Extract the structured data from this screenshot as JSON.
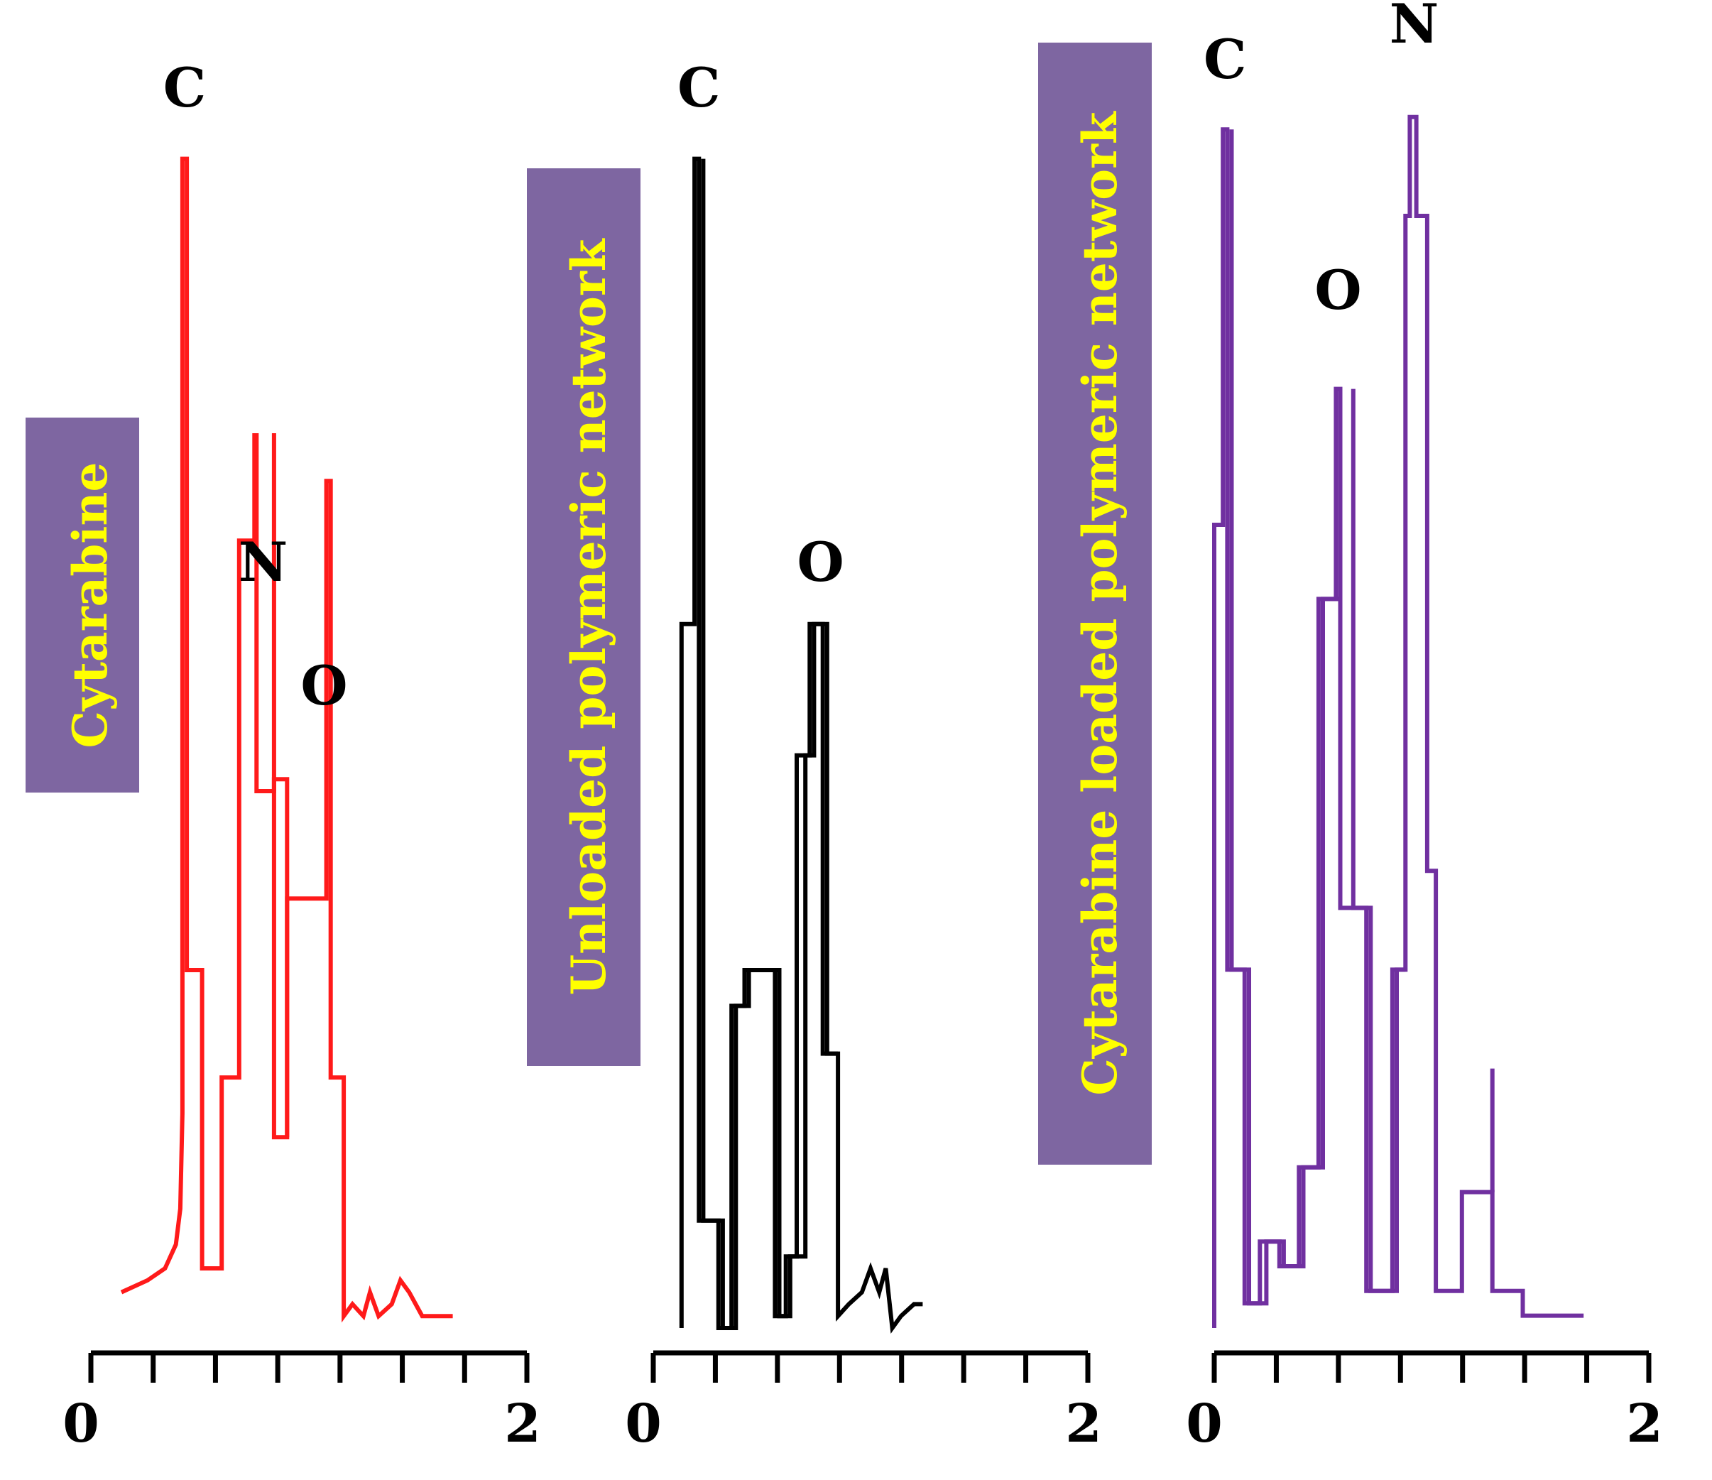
{
  "colors": {
    "label_box": "#7e66a1",
    "label_text": "#ffff00",
    "axis": "#000000"
  },
  "chart_data": [
    {
      "type": "line",
      "name": "Cytarabine",
      "sample_label": "Cytarabine",
      "color": "#ff1a1a",
      "xlim": [
        0,
        2
      ],
      "x_tick_labels": [
        "0",
        "2"
      ],
      "peak_labels": [
        {
          "text": "C",
          "x": 0.43
        },
        {
          "text": "N",
          "x": 0.79
        },
        {
          "text": "O",
          "x": 1.07
        }
      ],
      "series": [
        {
          "name": "trace-a",
          "points": [
            [
              0.14,
              0.03
            ],
            [
              0.26,
              0.04
            ],
            [
              0.34,
              0.05
            ],
            [
              0.39,
              0.07
            ],
            [
              0.41,
              0.1
            ],
            [
              0.42,
              0.18
            ],
            [
              0.42,
              0.98
            ],
            [
              0.44,
              0.98
            ],
            [
              0.44,
              0.3
            ],
            [
              0.51,
              0.3
            ],
            [
              0.51,
              0.05
            ],
            [
              0.6,
              0.05
            ],
            [
              0.6,
              0.21
            ],
            [
              0.68,
              0.21
            ],
            [
              0.68,
              0.66
            ],
            [
              0.75,
              0.66
            ],
            [
              0.75,
              0.75
            ]
          ]
        },
        {
          "name": "trace-b",
          "points": [
            [
              0.84,
              0.75
            ],
            [
              0.84,
              0.16
            ],
            [
              0.9,
              0.16
            ],
            [
              0.9,
              0.36
            ],
            [
              1.08,
              0.36
            ],
            [
              1.08,
              0.71
            ],
            [
              1.1,
              0.71
            ],
            [
              1.1,
              0.21
            ],
            [
              1.16,
              0.21
            ],
            [
              1.16,
              0.01
            ],
            [
              1.2,
              0.02
            ],
            [
              1.25,
              0.01
            ],
            [
              1.28,
              0.03
            ],
            [
              1.32,
              0.01
            ],
            [
              1.38,
              0.02
            ],
            [
              1.42,
              0.04
            ],
            [
              1.46,
              0.03
            ],
            [
              1.52,
              0.01
            ],
            [
              1.58,
              0.01
            ],
            [
              1.66,
              0.01
            ]
          ]
        },
        {
          "name": "trace-c",
          "points": [
            [
              0.76,
              0.75
            ],
            [
              0.76,
              0.45
            ],
            [
              0.84,
              0.45
            ],
            [
              0.84,
              0.46
            ],
            [
              0.9,
              0.46
            ],
            [
              0.9,
              0.16
            ]
          ]
        }
      ]
    },
    {
      "type": "line",
      "name": "Unloaded polymeric network",
      "sample_label": "Unloaded polymeric network",
      "color": "#000000",
      "xlim": [
        0,
        2
      ],
      "x_tick_labels": [
        "0",
        "2"
      ],
      "peak_labels": [
        {
          "text": "C",
          "x": 0.21
        },
        {
          "text": "O",
          "x": 0.77
        }
      ],
      "series": [
        {
          "name": "trace-a",
          "points": [
            [
              0.13,
              0.0
            ],
            [
              0.13,
              0.59
            ],
            [
              0.19,
              0.59
            ],
            [
              0.19,
              0.98
            ],
            [
              0.21,
              0.98
            ],
            [
              0.21,
              0.09
            ],
            [
              0.32,
              0.09
            ],
            [
              0.32,
              0.0
            ],
            [
              0.36,
              0.0
            ],
            [
              0.36,
              0.27
            ],
            [
              0.42,
              0.27
            ],
            [
              0.42,
              0.3
            ],
            [
              0.56,
              0.3
            ],
            [
              0.56,
              0.01
            ],
            [
              0.61,
              0.01
            ],
            [
              0.61,
              0.06
            ],
            [
              0.66,
              0.06
            ],
            [
              0.66,
              0.48
            ],
            [
              0.72,
              0.48
            ],
            [
              0.72,
              0.59
            ],
            [
              0.78,
              0.59
            ],
            [
              0.78,
              0.23
            ],
            [
              0.85,
              0.23
            ],
            [
              0.85,
              0.01
            ],
            [
              0.9,
              0.02
            ],
            [
              0.96,
              0.03
            ],
            [
              1.0,
              0.05
            ],
            [
              1.04,
              0.03
            ],
            [
              1.07,
              0.05
            ],
            [
              1.1,
              0.0
            ],
            [
              1.14,
              0.01
            ],
            [
              1.2,
              0.02
            ],
            [
              1.24,
              0.02
            ]
          ]
        },
        {
          "name": "trace-b",
          "points": [
            [
              0.23,
              0.98
            ],
            [
              0.23,
              0.09
            ],
            [
              0.3,
              0.09
            ],
            [
              0.3,
              0.0
            ],
            [
              0.38,
              0.0
            ],
            [
              0.38,
              0.27
            ],
            [
              0.44,
              0.27
            ],
            [
              0.44,
              0.3
            ],
            [
              0.58,
              0.3
            ],
            [
              0.58,
              0.01
            ],
            [
              0.63,
              0.01
            ],
            [
              0.63,
              0.06
            ],
            [
              0.7,
              0.06
            ],
            [
              0.7,
              0.48
            ],
            [
              0.74,
              0.48
            ],
            [
              0.74,
              0.59
            ],
            [
              0.8,
              0.59
            ],
            [
              0.8,
              0.23
            ],
            [
              0.85,
              0.23
            ]
          ]
        }
      ]
    },
    {
      "type": "line",
      "name": "Cytarabine loaded polymeric network",
      "sample_label": "Cytarabine loaded polymeric network",
      "color": "#7030a0",
      "xlim": [
        0,
        2
      ],
      "x_tick_labels": [
        "0",
        "2"
      ],
      "peak_labels": [
        {
          "text": "C",
          "x": 0.05
        },
        {
          "text": "O",
          "x": 0.57
        },
        {
          "text": "N",
          "x": 0.92
        }
      ],
      "series": [
        {
          "name": "trace-a",
          "points": [
            [
              0.0,
              0.0
            ],
            [
              0.0,
              0.65
            ],
            [
              0.04,
              0.65
            ],
            [
              0.04,
              0.97
            ],
            [
              0.06,
              0.97
            ],
            [
              0.06,
              0.29
            ],
            [
              0.14,
              0.29
            ],
            [
              0.14,
              0.02
            ],
            [
              0.21,
              0.02
            ],
            [
              0.21,
              0.07
            ],
            [
              0.32,
              0.07
            ],
            [
              0.32,
              0.05
            ],
            [
              0.39,
              0.05
            ],
            [
              0.39,
              0.13
            ],
            [
              0.48,
              0.13
            ],
            [
              0.48,
              0.59
            ],
            [
              0.56,
              0.59
            ],
            [
              0.56,
              0.76
            ],
            [
              0.58,
              0.76
            ],
            [
              0.58,
              0.34
            ],
            [
              0.7,
              0.34
            ],
            [
              0.7,
              0.03
            ],
            [
              0.82,
              0.03
            ],
            [
              0.82,
              0.29
            ],
            [
              0.88,
              0.29
            ],
            [
              0.88,
              0.9
            ],
            [
              0.9,
              0.9
            ],
            [
              0.9,
              0.98
            ],
            [
              0.93,
              0.98
            ],
            [
              0.93,
              0.9
            ],
            [
              0.98,
              0.9
            ],
            [
              0.98,
              0.37
            ],
            [
              1.02,
              0.37
            ],
            [
              1.02,
              0.03
            ],
            [
              1.14,
              0.03
            ],
            [
              1.14,
              0.11
            ],
            [
              1.28,
              0.11
            ],
            [
              1.28,
              0.03
            ],
            [
              1.42,
              0.03
            ],
            [
              1.42,
              0.01
            ],
            [
              1.7,
              0.01
            ]
          ]
        },
        {
          "name": "trace-b",
          "points": [
            [
              0.08,
              0.97
            ],
            [
              0.08,
              0.29
            ],
            [
              0.16,
              0.29
            ],
            [
              0.16,
              0.02
            ],
            [
              0.24,
              0.02
            ],
            [
              0.24,
              0.07
            ],
            [
              0.3,
              0.07
            ],
            [
              0.3,
              0.05
            ],
            [
              0.41,
              0.05
            ],
            [
              0.41,
              0.13
            ],
            [
              0.5,
              0.13
            ],
            [
              0.5,
              0.59
            ],
            [
              0.58,
              0.59
            ],
            [
              0.58,
              0.34
            ]
          ]
        },
        {
          "name": "trace-c",
          "points": [
            [
              0.64,
              0.76
            ],
            [
              0.64,
              0.34
            ],
            [
              0.72,
              0.34
            ],
            [
              0.72,
              0.03
            ],
            [
              0.84,
              0.03
            ],
            [
              0.84,
              0.29
            ],
            [
              0.88,
              0.29
            ]
          ]
        },
        {
          "name": "trace-d",
          "points": [
            [
              1.28,
              0.11
            ],
            [
              1.28,
              0.21
            ]
          ]
        }
      ]
    }
  ]
}
